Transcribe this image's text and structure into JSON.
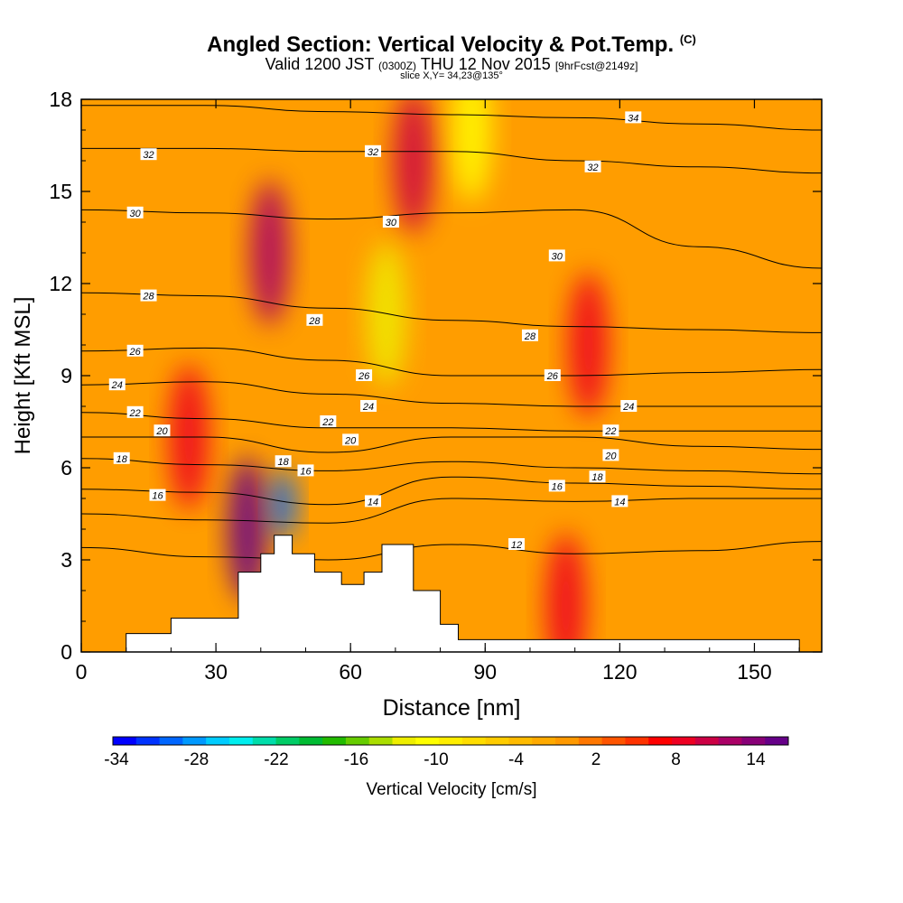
{
  "header": {
    "title_main": "Angled Section: Vertical Velocity & Pot.Temp.",
    "title_mark": "(C)",
    "valid_pre": "Valid 1200 JST",
    "valid_z": "(0300Z)",
    "valid_date": "THU 12 Nov 2015",
    "valid_fcst": "[9hrFcst@2149z]",
    "slice": "slice X,Y= 34,23@135°"
  },
  "chart_data": {
    "type": "heatmap",
    "xlabel": "Distance [nm]",
    "ylabel": "Height [Kft MSL]",
    "xlim": [
      0,
      165
    ],
    "ylim": [
      0,
      18
    ],
    "x_ticks": [
      0,
      30,
      60,
      90,
      120,
      150
    ],
    "y_ticks": [
      0,
      3,
      6,
      9,
      12,
      15,
      18
    ],
    "colorbar": {
      "label": "Vertical Velocity [cm/s]",
      "tick_labels": [
        -34,
        -28,
        -22,
        -16,
        -10,
        -4,
        2,
        8,
        14
      ],
      "colors": [
        "#0000ff",
        "#0033ff",
        "#0066ff",
        "#0099ff",
        "#00ccff",
        "#00eeee",
        "#00ddaa",
        "#00cc66",
        "#00bb33",
        "#22bb00",
        "#66cc00",
        "#aadd00",
        "#eeee00",
        "#ffff00",
        "#ffee00",
        "#ffdd00",
        "#ffcc00",
        "#ffbb00",
        "#ffaa00",
        "#ff9900",
        "#ff7700",
        "#ff5500",
        "#ff3300",
        "#ff0000",
        "#ee0022",
        "#cc0044",
        "#aa0066",
        "#880077",
        "#660088"
      ]
    },
    "terrain": [
      [
        10,
        0
      ],
      [
        10,
        0.6
      ],
      [
        20,
        0.6
      ],
      [
        20,
        1.1
      ],
      [
        35,
        1.1
      ],
      [
        35,
        2.6
      ],
      [
        40,
        2.6
      ],
      [
        40,
        3.2
      ],
      [
        43,
        3.2
      ],
      [
        43,
        3.8
      ],
      [
        47,
        3.8
      ],
      [
        47,
        3.2
      ],
      [
        52,
        3.2
      ],
      [
        52,
        2.6
      ],
      [
        58,
        2.6
      ],
      [
        58,
        2.2
      ],
      [
        63,
        2.2
      ],
      [
        63,
        2.6
      ],
      [
        67,
        2.6
      ],
      [
        67,
        3.5
      ],
      [
        74,
        3.5
      ],
      [
        74,
        2.0
      ],
      [
        80,
        2.0
      ],
      [
        80,
        0.9
      ],
      [
        84,
        0.9
      ],
      [
        84,
        0.4
      ],
      [
        160,
        0.4
      ],
      [
        160,
        0
      ]
    ],
    "velocity_features": [
      {
        "x": 42,
        "y": 13,
        "value": 10
      },
      {
        "x": 74,
        "y": 16,
        "value": 9
      },
      {
        "x": 37,
        "y": 4,
        "value": 14
      },
      {
        "x": 45,
        "y": 4.8,
        "value": -30
      },
      {
        "x": 68,
        "y": 11,
        "value": -14
      },
      {
        "x": 87,
        "y": 17,
        "value": -12
      },
      {
        "x": 24,
        "y": 7,
        "value": 8
      },
      {
        "x": 113,
        "y": 10,
        "value": 7
      },
      {
        "x": 108,
        "y": 1.5,
        "value": 8
      }
    ],
    "isentropes": [
      {
        "theta": 34,
        "y": [
          17.8,
          17.8,
          17.6,
          17.5,
          17.4,
          17.2,
          17.0
        ],
        "labels": [
          [
            123,
            17.4
          ]
        ]
      },
      {
        "theta": 32,
        "y": [
          16.4,
          16.4,
          16.3,
          16.3,
          16.0,
          15.8,
          15.6
        ],
        "labels": [
          [
            15,
            16.2
          ],
          [
            65,
            16.3
          ],
          [
            114,
            15.8
          ]
        ]
      },
      {
        "theta": 30,
        "y": [
          14.4,
          14.3,
          14.1,
          14.3,
          14.4,
          13.2,
          12.5
        ],
        "labels": [
          [
            12,
            14.3
          ],
          [
            69,
            14.0
          ],
          [
            106,
            12.9
          ]
        ]
      },
      {
        "theta": 28,
        "y": [
          11.7,
          11.6,
          11.2,
          10.8,
          10.6,
          10.5,
          10.4
        ],
        "labels": [
          [
            15,
            11.6
          ],
          [
            52,
            10.8
          ],
          [
            100,
            10.3
          ]
        ]
      },
      {
        "theta": 26,
        "y": [
          9.8,
          9.9,
          9.5,
          9.0,
          9.0,
          9.1,
          9.2
        ],
        "labels": [
          [
            12,
            9.8
          ],
          [
            63,
            9.0
          ],
          [
            105,
            9.0
          ]
        ]
      },
      {
        "theta": 24,
        "y": [
          8.7,
          8.8,
          8.4,
          8.1,
          8.0,
          8.0,
          8.0
        ],
        "labels": [
          [
            8,
            8.7
          ],
          [
            64,
            8.0
          ],
          [
            122,
            8.0
          ]
        ]
      },
      {
        "theta": 22,
        "y": [
          7.8,
          7.6,
          7.3,
          7.3,
          7.2,
          7.2,
          7.2
        ],
        "labels": [
          [
            12,
            7.8
          ],
          [
            55,
            7.5
          ],
          [
            118,
            7.2
          ]
        ]
      },
      {
        "theta": 20,
        "y": [
          7.0,
          7.0,
          6.5,
          7.0,
          7.0,
          6.7,
          6.6
        ],
        "labels": [
          [
            18,
            7.2
          ],
          [
            60,
            6.9
          ],
          [
            118,
            6.4
          ]
        ]
      },
      {
        "theta": 18,
        "y": [
          6.3,
          6.1,
          5.9,
          6.2,
          6.0,
          5.9,
          5.8
        ],
        "labels": [
          [
            9,
            6.3
          ],
          [
            45,
            6.2
          ],
          [
            115,
            5.7
          ]
        ]
      },
      {
        "theta": 16,
        "y": [
          5.3,
          5.2,
          4.8,
          5.7,
          5.5,
          5.4,
          5.3
        ],
        "labels": [
          [
            17,
            5.1
          ],
          [
            50,
            5.9
          ],
          [
            106,
            5.4
          ]
        ]
      },
      {
        "theta": 14,
        "y": [
          4.5,
          4.3,
          4.2,
          5.0,
          4.9,
          5.0,
          5.0
        ],
        "labels": [
          [
            65,
            4.9
          ],
          [
            120,
            4.9
          ]
        ]
      },
      {
        "theta": 12,
        "y": [
          3.4,
          3.1,
          3.0,
          3.5,
          3.2,
          3.3,
          3.6
        ],
        "labels": [
          [
            97,
            3.5
          ]
        ]
      }
    ]
  }
}
